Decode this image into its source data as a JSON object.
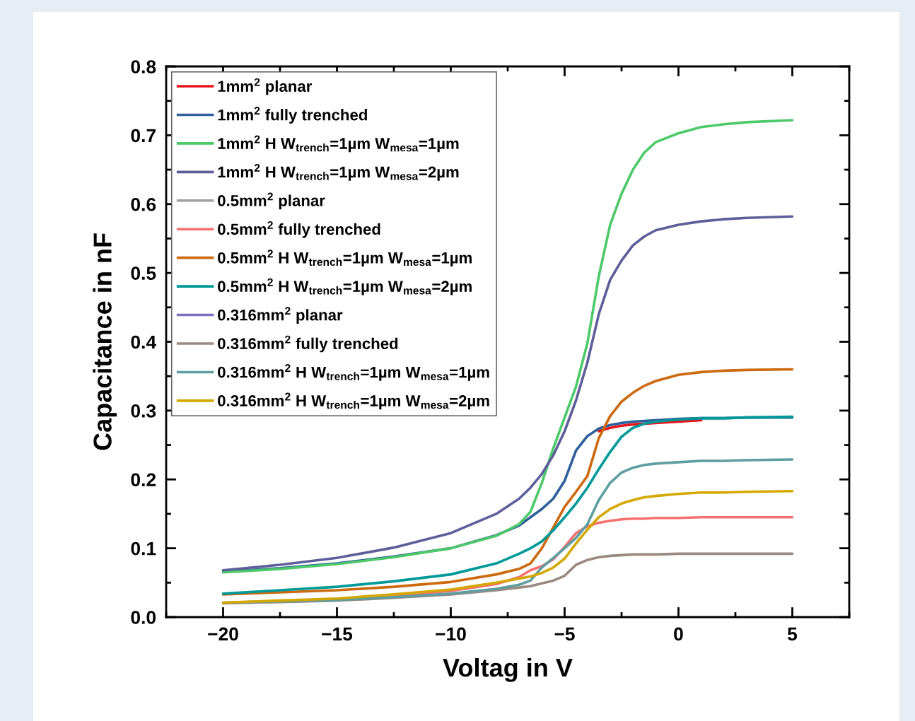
{
  "chart_data": {
    "type": "line",
    "xlabel": "Voltag in V",
    "ylabel": "Capacitance in nF",
    "x": [
      -20,
      -17.5,
      -15,
      -12.5,
      -10,
      -8,
      -7,
      -6.5,
      -6,
      -5.5,
      -5,
      -4.5,
      -4,
      -3.5,
      -3,
      -2.5,
      -2,
      -1.5,
      -1,
      0,
      1,
      2,
      3,
      5
    ],
    "xlim": [
      -22.5,
      7.5
    ],
    "xticks": [
      {
        "value": -20,
        "label": "−20"
      },
      {
        "value": -15,
        "label": "−15"
      },
      {
        "value": -10,
        "label": "−10"
      },
      {
        "value": -5,
        "label": "−5"
      },
      0,
      5
    ],
    "ylim": [
      0,
      0.8
    ],
    "yticks": [
      {
        "value": 0,
        "label": "0.0"
      },
      0.1,
      0.2,
      0.3,
      0.4,
      0.5,
      0.6,
      0.7,
      0.8
    ],
    "grid": false,
    "legend": "top left",
    "marker": "none",
    "line_style": "solid",
    "series": [
      {
        "name": "1mm$^{2}$ planar",
        "color": "#e8141b",
        "values": [
          null,
          null,
          null,
          null,
          null,
          null,
          null,
          null,
          null,
          null,
          null,
          null,
          null,
          0.27,
          0.275,
          0.278,
          0.28,
          0.281,
          0.282,
          0.284,
          0.286,
          null,
          null,
          null
        ]
      },
      {
        "name": "1mm$^{2}$ fully trenched",
        "color": "#2f5f9a",
        "values": [
          0.066,
          0.071,
          0.078,
          0.088,
          0.1,
          0.119,
          0.133,
          0.145,
          0.157,
          0.172,
          0.198,
          0.242,
          0.263,
          0.274,
          0.279,
          0.282,
          0.284,
          0.285,
          0.286,
          0.288,
          0.289,
          0.289,
          0.29,
          0.29
        ]
      },
      {
        "name": "1mm$^{2}$ H W$_{trench}$=1µm W$_{mesa}$=1µm",
        "color": "#4dc96a",
        "values": [
          0.065,
          0.07,
          0.077,
          0.087,
          0.1,
          0.118,
          0.135,
          0.153,
          0.195,
          0.245,
          0.29,
          0.335,
          0.398,
          0.495,
          0.57,
          0.615,
          0.65,
          0.675,
          0.69,
          0.703,
          0.712,
          0.716,
          0.719,
          0.722
        ]
      },
      {
        "name": "1mm$^{2}$ H W$_{trench}$=1µm W$_{mesa}$=2µm",
        "color": "#5e5e9a",
        "values": [
          0.068,
          0.076,
          0.086,
          0.101,
          0.122,
          0.15,
          0.172,
          0.188,
          0.208,
          0.235,
          0.27,
          0.315,
          0.37,
          0.44,
          0.49,
          0.518,
          0.54,
          0.553,
          0.562,
          0.57,
          0.575,
          0.578,
          0.58,
          0.582
        ]
      },
      {
        "name": "0.5mm$^{2}$ planar",
        "color": "#a0a0a0",
        "values": [
          null,
          null,
          null,
          null,
          null,
          null,
          null,
          null,
          null,
          null,
          null,
          null,
          null,
          null,
          null,
          null,
          null,
          null,
          null,
          null,
          null,
          null,
          null,
          null
        ]
      },
      {
        "name": "0.5mm$^{2}$ fully trenched",
        "color": "#f77070",
        "values": [
          null,
          null,
          0.026,
          0.031,
          0.038,
          0.048,
          0.058,
          0.068,
          0.074,
          0.084,
          0.102,
          0.122,
          0.132,
          0.137,
          0.14,
          0.142,
          0.143,
          0.143,
          0.144,
          0.144,
          0.145,
          0.145,
          0.145,
          0.145
        ]
      },
      {
        "name": "0.5mm$^{2}$ H W$_{trench}$=1µm W$_{mesa}$=1µm",
        "color": "#cc6a10",
        "values": [
          0.033,
          0.036,
          0.039,
          0.044,
          0.051,
          0.062,
          0.07,
          0.078,
          0.1,
          0.13,
          0.16,
          0.182,
          0.205,
          0.26,
          0.292,
          0.313,
          0.326,
          0.336,
          0.343,
          0.352,
          0.356,
          0.358,
          0.359,
          0.36
        ]
      },
      {
        "name": "0.5mm$^{2}$ H W$_{trench}$=1µm W$_{mesa}$=2µm",
        "color": "#009999",
        "values": [
          0.034,
          0.039,
          0.044,
          0.052,
          0.062,
          0.078,
          0.092,
          0.1,
          0.11,
          0.126,
          0.145,
          0.165,
          0.188,
          0.215,
          0.24,
          0.262,
          0.275,
          0.281,
          0.284,
          0.287,
          0.289,
          0.289,
          0.29,
          0.291
        ]
      },
      {
        "name": "0.316mm$^{2}$ planar",
        "color": "#7b6fc0",
        "values": [
          null,
          null,
          null,
          null,
          null,
          null,
          null,
          null,
          null,
          null,
          null,
          null,
          null,
          null,
          null,
          null,
          null,
          null,
          null,
          null,
          null,
          null,
          null,
          null
        ]
      },
      {
        "name": "0.316mm$^{2}$ fully trenched",
        "color": "#9a8a80",
        "values": [
          0.02,
          0.022,
          0.024,
          0.028,
          0.033,
          0.039,
          0.043,
          0.045,
          0.049,
          0.053,
          0.06,
          0.076,
          0.083,
          0.087,
          0.089,
          0.09,
          0.091,
          0.091,
          0.091,
          0.092,
          0.092,
          0.092,
          0.092,
          0.092
        ]
      },
      {
        "name": "0.316mm$^{2}$ H W$_{trench}$=1µm W$_{mesa}$=1µm",
        "color": "#5e9ea0",
        "values": [
          0.021,
          0.023,
          0.025,
          0.029,
          0.034,
          0.041,
          0.047,
          0.053,
          0.072,
          0.086,
          0.1,
          0.115,
          0.135,
          0.17,
          0.195,
          0.21,
          0.217,
          0.221,
          0.223,
          0.225,
          0.227,
          0.227,
          0.228,
          0.229
        ]
      },
      {
        "name": "0.316mm$^{2}$ H W$_{trench}$=1µm W$_{mesa}$=2µm",
        "color": "#d4a800",
        "values": [
          0.021,
          0.024,
          0.027,
          0.033,
          0.04,
          0.05,
          0.056,
          0.059,
          0.064,
          0.072,
          0.085,
          0.107,
          0.127,
          0.145,
          0.157,
          0.165,
          0.17,
          0.174,
          0.176,
          0.179,
          0.181,
          0.181,
          0.182,
          0.183
        ]
      }
    ]
  }
}
